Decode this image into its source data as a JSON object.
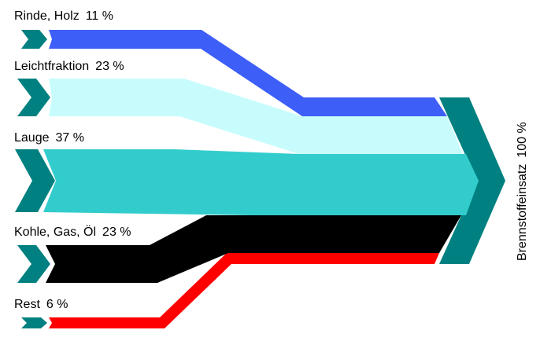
{
  "diagram": {
    "type": "sankey",
    "inputs": [
      {
        "name": "Rinde, Holz",
        "percent": "11 %",
        "value": 11,
        "color": "#3e5ef8"
      },
      {
        "name": "Leichtfraktion",
        "percent": "23 %",
        "value": 23,
        "color": "#c8fcfc"
      },
      {
        "name": "Lauge",
        "percent": "37 %",
        "value": 37,
        "color": "#33cccc"
      },
      {
        "name": "Kohle, Gas, Öl",
        "percent": "23 %",
        "value": 23,
        "color": "#000000"
      },
      {
        "name": "Rest",
        "percent": "6 %",
        "value": 6,
        "color": "#ff0000"
      }
    ],
    "output": {
      "name": "Brennstoffeinsatz",
      "percent": "100 %",
      "value": 100,
      "color": "#008080"
    },
    "marker_color": "#008080"
  }
}
